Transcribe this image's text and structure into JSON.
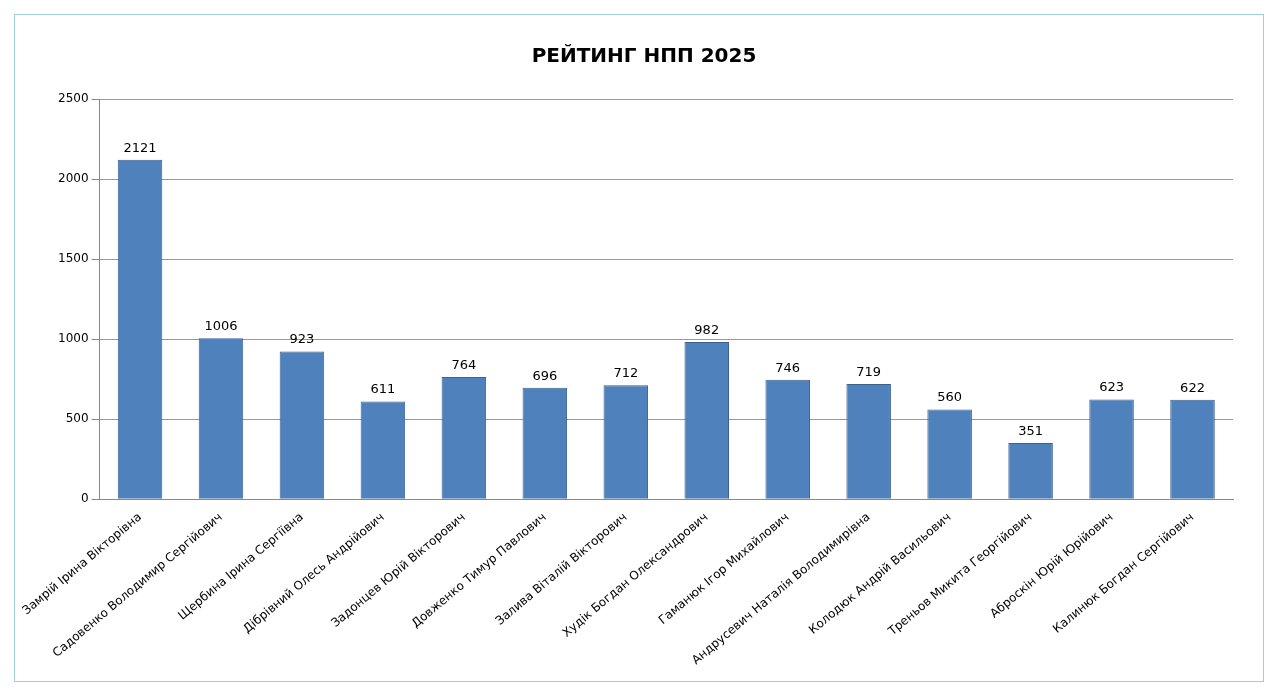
{
  "chart_data": {
    "type": "bar",
    "title": "РЕЙТИНГ НПП 2025",
    "categories": [
      "Замрій Ірина Вікторівна",
      "Садовенко Володимир Сергійович",
      "Щербина Ірина Сергіївна",
      "Дібрівний Олесь Андрійович",
      "Задонцев Юрій Вікторович",
      "Довженко Тимур Павлович",
      "Залива Віталій Вікторович",
      "Худік Богдан Олександрович",
      "Гаманюк Ігор Михайлович",
      "Андрусевич Наталія Володимирівна",
      "Колодюк Андрій Васильович",
      "Треньов Микита Георгійович",
      "Аброскін Юрій Юрійович",
      "Калинюк Богдан Сергійович"
    ],
    "values": [
      2121,
      1006,
      923,
      611,
      764,
      696,
      712,
      982,
      746,
      719,
      560,
      351,
      623,
      622
    ],
    "color": "#4f81bd",
    "ylim": [
      0,
      2500
    ],
    "yticks": [
      0,
      500,
      1000,
      1500,
      2000,
      2500
    ],
    "grid": "y",
    "data_labels": true
  }
}
